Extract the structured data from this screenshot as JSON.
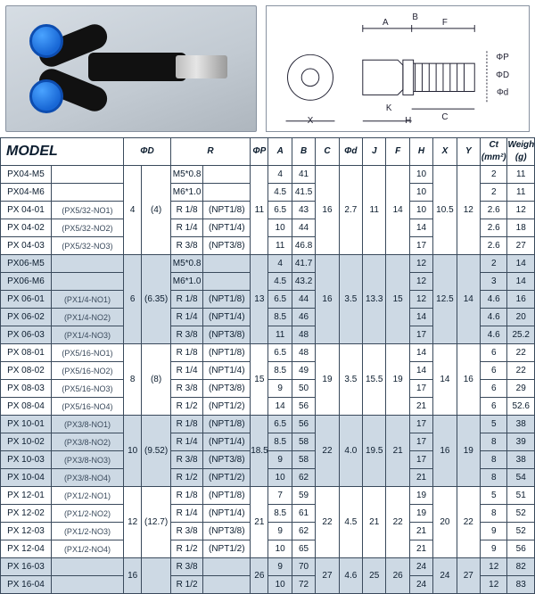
{
  "diagram_labels": {
    "A": "A",
    "B": "B",
    "C": "C",
    "F": "F",
    "J": "J",
    "K": "K",
    "H": "H",
    "X": "X",
    "phiD": "ΦD",
    "phiP": "ΦP",
    "phid": "Φd"
  },
  "columns": [
    "MODEL",
    "ΦD",
    "R",
    "ΦP",
    "A",
    "B",
    "C",
    "Φd",
    "J",
    "F",
    "H",
    "X",
    "Y",
    "Ct\n(mm²)",
    "Weigh\n(g)"
  ],
  "image_alt": "Black pneumatic Y-branch push-in fitting with two blue collars and male threaded end",
  "rows": [
    {
      "m": "PX04-M5",
      "sub": "",
      "phiD": "4",
      "phiD2": "(4)",
      "r1": "M5*0.8",
      "r2": "",
      "pp": "11",
      "A": "4",
      "B": "41",
      "C": "16",
      "phid": "2.7",
      "J": "11",
      "F": "14",
      "H": "10",
      "X": "10.5",
      "Y": "12",
      "Ct": "2",
      "W": "11"
    },
    {
      "m": "PX04-M6",
      "sub": "",
      "phiD": "",
      "phiD2": "",
      "r1": "M6*1.0",
      "r2": "",
      "pp": "",
      "A": "4.5",
      "B": "41.5",
      "C": "",
      "phid": "",
      "J": "",
      "F": "",
      "H": "10",
      "X": "",
      "Y": "",
      "Ct": "2",
      "W": "11"
    },
    {
      "m": "PX 04-01",
      "sub": "(PX5/32-NO1)",
      "phiD": "",
      "phiD2": "",
      "r1": "R 1/8",
      "r2": "(NPT1/8)",
      "pp": "",
      "A": "6.5",
      "B": "43",
      "C": "",
      "phid": "",
      "J": "",
      "F": "",
      "H": "10",
      "X": "",
      "Y": "",
      "Ct": "2.6",
      "W": "12"
    },
    {
      "m": "PX 04-02",
      "sub": "(PX5/32-NO2)",
      "phiD": "",
      "phiD2": "",
      "r1": "R 1/4",
      "r2": "(NPT1/4)",
      "pp": "",
      "A": "10",
      "B": "44",
      "C": "",
      "phid": "",
      "J": "",
      "F": "",
      "H": "14",
      "X": "",
      "Y": "",
      "Ct": "2.6",
      "W": "18"
    },
    {
      "m": "PX 04-03",
      "sub": "(PX5/32-NO3)",
      "phiD": "",
      "phiD2": "",
      "r1": "R 3/8",
      "r2": "(NPT3/8)",
      "pp": "",
      "A": "11",
      "B": "46.8",
      "C": "",
      "phid": "",
      "J": "",
      "F": "",
      "H": "17",
      "X": "",
      "Y": "",
      "Ct": "2.6",
      "W": "27"
    },
    {
      "m": "PX06-M5",
      "sub": "",
      "phiD": "6",
      "phiD2": "(6.35)",
      "r1": "M5*0.8",
      "r2": "",
      "pp": "13",
      "A": "4",
      "B": "41.7",
      "C": "16",
      "phid": "3.5",
      "J": "13.3",
      "F": "15",
      "H": "12",
      "X": "12.5",
      "Y": "14",
      "Ct": "2",
      "W": "14"
    },
    {
      "m": "PX06-M6",
      "sub": "",
      "phiD": "",
      "phiD2": "",
      "r1": "M6*1.0",
      "r2": "",
      "pp": "",
      "A": "4.5",
      "B": "43.2",
      "C": "",
      "phid": "",
      "J": "",
      "F": "",
      "H": "12",
      "X": "",
      "Y": "",
      "Ct": "3",
      "W": "14"
    },
    {
      "m": "PX 06-01",
      "sub": "(PX1/4-NO1)",
      "phiD": "",
      "phiD2": "",
      "r1": "R 1/8",
      "r2": "(NPT1/8)",
      "pp": "",
      "A": "6.5",
      "B": "44",
      "C": "",
      "phid": "",
      "J": "",
      "F": "",
      "H": "12",
      "X": "",
      "Y": "",
      "Ct": "4.6",
      "W": "16"
    },
    {
      "m": "PX 06-02",
      "sub": "(PX1/4-NO2)",
      "phiD": "",
      "phiD2": "",
      "r1": "R 1/4",
      "r2": "(NPT1/4)",
      "pp": "",
      "A": "8.5",
      "B": "46",
      "C": "",
      "phid": "",
      "J": "",
      "F": "",
      "H": "14",
      "X": "",
      "Y": "",
      "Ct": "4.6",
      "W": "20"
    },
    {
      "m": "PX 06-03",
      "sub": "(PX1/4-NO3)",
      "phiD": "",
      "phiD2": "",
      "r1": "R 3/8",
      "r2": "(NPT3/8)",
      "pp": "",
      "A": "11",
      "B": "48",
      "C": "",
      "phid": "",
      "J": "",
      "F": "",
      "H": "17",
      "X": "",
      "Y": "",
      "Ct": "4.6",
      "W": "25.2"
    },
    {
      "m": "PX 08-01",
      "sub": "(PX5/16-NO1)",
      "phiD": "8",
      "phiD2": "(8)",
      "r1": "R 1/8",
      "r2": "(NPT1/8)",
      "pp": "15",
      "A": "6.5",
      "B": "48",
      "C": "19",
      "phid": "3.5",
      "J": "15.5",
      "F": "19",
      "H": "14",
      "X": "14",
      "Y": "16",
      "Ct": "6",
      "W": "22"
    },
    {
      "m": "PX 08-02",
      "sub": "(PX5/16-NO2)",
      "phiD": "",
      "phiD2": "",
      "r1": "R 1/4",
      "r2": "(NPT1/4)",
      "pp": "",
      "A": "8.5",
      "B": "49",
      "C": "",
      "phid": "",
      "J": "",
      "F": "",
      "H": "14",
      "X": "",
      "Y": "",
      "Ct": "6",
      "W": "22"
    },
    {
      "m": "PX 08-03",
      "sub": "(PX5/16-NO3)",
      "phiD": "",
      "phiD2": "",
      "r1": "R 3/8",
      "r2": "(NPT3/8)",
      "pp": "",
      "A": "9",
      "B": "50",
      "C": "",
      "phid": "",
      "J": "",
      "F": "",
      "H": "17",
      "X": "",
      "Y": "",
      "Ct": "6",
      "W": "29"
    },
    {
      "m": "PX 08-04",
      "sub": "(PX5/16-NO4)",
      "phiD": "",
      "phiD2": "",
      "r1": "R 1/2",
      "r2": "(NPT1/2)",
      "pp": "",
      "A": "14",
      "B": "56",
      "C": "",
      "phid": "",
      "J": "",
      "F": "",
      "H": "21",
      "X": "",
      "Y": "",
      "Ct": "6",
      "W": "52.6"
    },
    {
      "m": "PX 10-01",
      "sub": "(PX3/8-NO1)",
      "phiD": "10",
      "phiD2": "(9.52)",
      "r1": "R 1/8",
      "r2": "(NPT1/8)",
      "pp": "18.5",
      "A": "6.5",
      "B": "56",
      "C": "22",
      "phid": "4.0",
      "J": "19.5",
      "F": "21",
      "H": "17",
      "X": "16",
      "Y": "19",
      "Ct": "5",
      "W": "38"
    },
    {
      "m": "PX 10-02",
      "sub": "(PX3/8-NO2)",
      "phiD": "",
      "phiD2": "",
      "r1": "R 1/4",
      "r2": "(NPT1/4)",
      "pp": "",
      "A": "8.5",
      "B": "58",
      "C": "",
      "phid": "",
      "J": "",
      "F": "",
      "H": "17",
      "X": "",
      "Y": "",
      "Ct": "8",
      "W": "39"
    },
    {
      "m": "PX 10-03",
      "sub": "(PX3/8-NO3)",
      "phiD": "",
      "phiD2": "",
      "r1": "R 3/8",
      "r2": "(NPT3/8)",
      "pp": "",
      "A": "9",
      "B": "58",
      "C": "",
      "phid": "",
      "J": "",
      "F": "",
      "H": "17",
      "X": "",
      "Y": "",
      "Ct": "8",
      "W": "38"
    },
    {
      "m": "PX 10-04",
      "sub": "(PX3/8-NO4)",
      "phiD": "",
      "phiD2": "",
      "r1": "R 1/2",
      "r2": "(NPT1/2)",
      "pp": "",
      "A": "10",
      "B": "62",
      "C": "",
      "phid": "",
      "J": "",
      "F": "",
      "H": "21",
      "X": "",
      "Y": "",
      "Ct": "8",
      "W": "54"
    },
    {
      "m": "PX 12-01",
      "sub": "(PX1/2-NO1)",
      "phiD": "12",
      "phiD2": "(12.7)",
      "r1": "R 1/8",
      "r2": "(NPT1/8)",
      "pp": "21",
      "A": "7",
      "B": "59",
      "C": "22",
      "phid": "4.5",
      "J": "21",
      "F": "22",
      "H": "19",
      "X": "20",
      "Y": "22",
      "Ct": "5",
      "W": "51"
    },
    {
      "m": "PX 12-02",
      "sub": "(PX1/2-NO2)",
      "phiD": "",
      "phiD2": "",
      "r1": "R 1/4",
      "r2": "(NPT1/4)",
      "pp": "",
      "A": "8.5",
      "B": "61",
      "C": "",
      "phid": "",
      "J": "",
      "F": "",
      "H": "19",
      "X": "",
      "Y": "",
      "Ct": "8",
      "W": "52"
    },
    {
      "m": "PX 12-03",
      "sub": "(PX1/2-NO3)",
      "phiD": "",
      "phiD2": "",
      "r1": "R 3/8",
      "r2": "(NPT3/8)",
      "pp": "",
      "A": "9",
      "B": "62",
      "C": "",
      "phid": "",
      "J": "",
      "F": "",
      "H": "21",
      "X": "",
      "Y": "",
      "Ct": "9",
      "W": "52"
    },
    {
      "m": "PX 12-04",
      "sub": "(PX1/2-NO4)",
      "phiD": "",
      "phiD2": "",
      "r1": "R 1/2",
      "r2": "(NPT1/2)",
      "pp": "",
      "A": "10",
      "B": "65",
      "C": "",
      "phid": "",
      "J": "",
      "F": "",
      "H": "21",
      "X": "",
      "Y": "",
      "Ct": "9",
      "W": "56"
    },
    {
      "m": "PX 16-03",
      "sub": "",
      "phiD": "16",
      "phiD2": "",
      "r1": "R 3/8",
      "r2": "",
      "pp": "26",
      "A": "9",
      "B": "70",
      "C": "27",
      "phid": "4.6",
      "J": "25",
      "F": "26",
      "H": "24",
      "X": "24",
      "Y": "27",
      "Ct": "12",
      "W": "82"
    },
    {
      "m": "PX 16-04",
      "sub": "",
      "phiD": "",
      "phiD2": "",
      "r1": "R 1/2",
      "r2": "",
      "pp": "",
      "A": "10",
      "B": "72",
      "C": "",
      "phid": "",
      "J": "",
      "F": "",
      "H": "24",
      "X": "",
      "Y": "",
      "Ct": "12",
      "W": "83"
    }
  ],
  "groups": [
    {
      "start": 0,
      "span": 5
    },
    {
      "start": 5,
      "span": 5
    },
    {
      "start": 10,
      "span": 4
    },
    {
      "start": 14,
      "span": 4
    },
    {
      "start": 18,
      "span": 4
    },
    {
      "start": 22,
      "span": 2
    }
  ]
}
